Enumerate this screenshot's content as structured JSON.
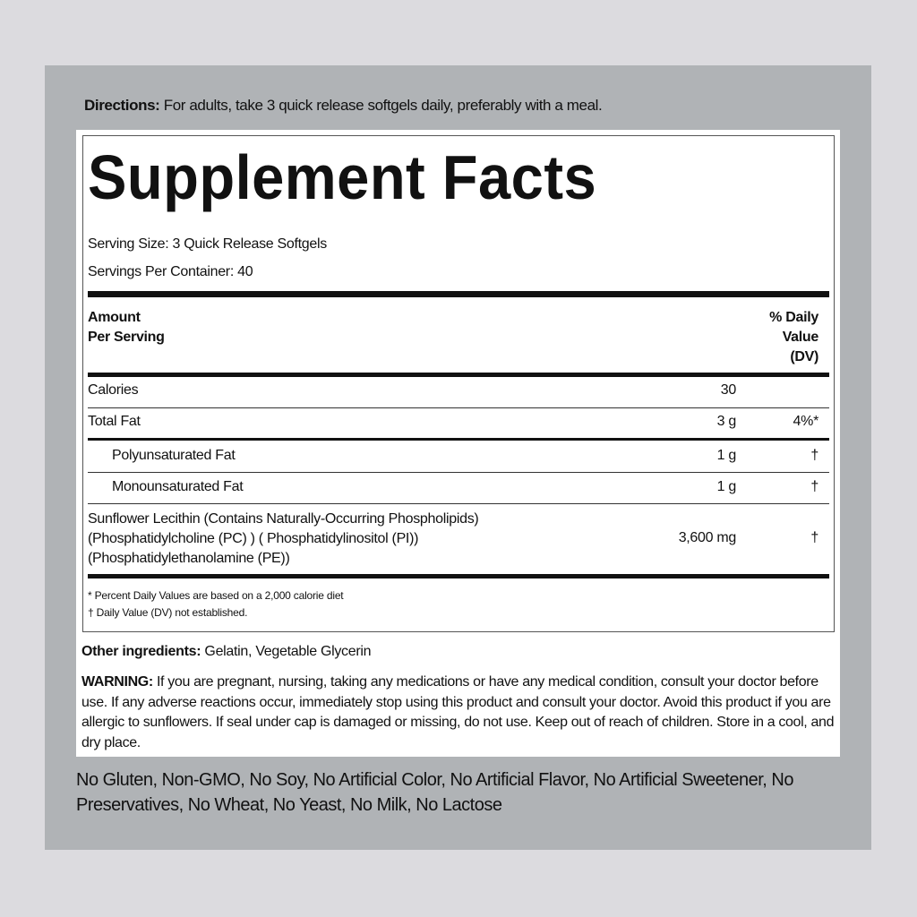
{
  "directions": {
    "label": "Directions:",
    "text": " For adults, take 3 quick release softgels daily, preferably with a meal."
  },
  "facts": {
    "title": "Supplement Facts",
    "serving_size": "Serving Size: 3 Quick Release Softgels",
    "servings_per_container": "Servings Per Container: 40",
    "header": {
      "amount_line1": "Amount",
      "amount_line2": "Per Serving",
      "dv_line1": "% Daily",
      "dv_line2": "Value",
      "dv_line3": "(DV)"
    },
    "rows": [
      {
        "name": "Calories",
        "amount": "30",
        "dv": ""
      },
      {
        "name": "Total Fat",
        "amount": "3 g",
        "dv": "4%*"
      },
      {
        "name": "Polyunsaturated Fat",
        "amount": "1 g",
        "dv": "†"
      },
      {
        "name": "Monounsaturated Fat",
        "amount": "1 g",
        "dv": "†"
      },
      {
        "name_line1": "Sunflower Lecithin (Contains Naturally-Occurring Phospholipids)",
        "name_line2": "(Phosphatidylcholine (PC) ) ( Phosphatidylinositol (PI))",
        "name_line3": "(Phosphatidylethanolamine (PE))",
        "amount": "3,600 mg",
        "dv": "†"
      }
    ],
    "footnote1": "* Percent Daily Values are based on a 2,000 calorie diet",
    "footnote2": "† Daily Value (DV) not established."
  },
  "other_ingredients": {
    "label": "Other ingredients:",
    "text": " Gelatin, Vegetable Glycerin"
  },
  "warning": {
    "label": "WARNING:",
    "text": " If you are pregnant, nursing, taking any medications or have any medical condition, consult your doctor before use. If any adverse reactions occur, immediately stop using this product and consult your doctor. Avoid this product if you are allergic to sunflowers. If seal under cap is damaged or missing, do not use. Keep out of reach of children. Store in a cool, and dry place."
  },
  "free_from": "No Gluten, Non-GMO, No Soy, No Artificial Color, No Artificial Flavor, No Artificial Sweetener, No Preservatives, No Wheat, No Yeast, No Milk, No Lactose"
}
